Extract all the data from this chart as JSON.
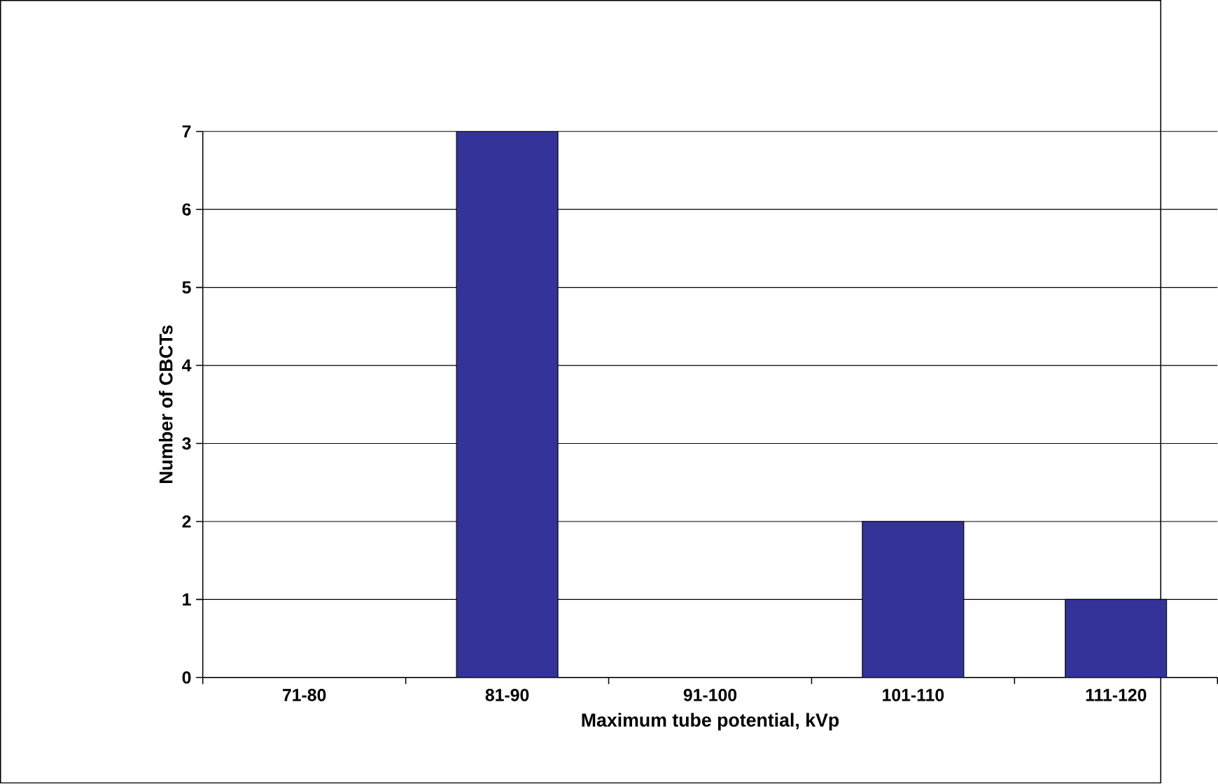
{
  "chart_data": {
    "type": "bar",
    "xlabel": "Maximum tube potential, kVp",
    "ylabel": "Number of CBCTs",
    "categories": [
      "71-80",
      "81-90",
      "91-100",
      "101-110",
      "111-120"
    ],
    "values": [
      0,
      7,
      0,
      2,
      1
    ],
    "color": "#333399",
    "ylim": [
      0,
      7
    ],
    "yticks": [
      0,
      1,
      2,
      3,
      4,
      5,
      6,
      7
    ],
    "grid": "y"
  }
}
